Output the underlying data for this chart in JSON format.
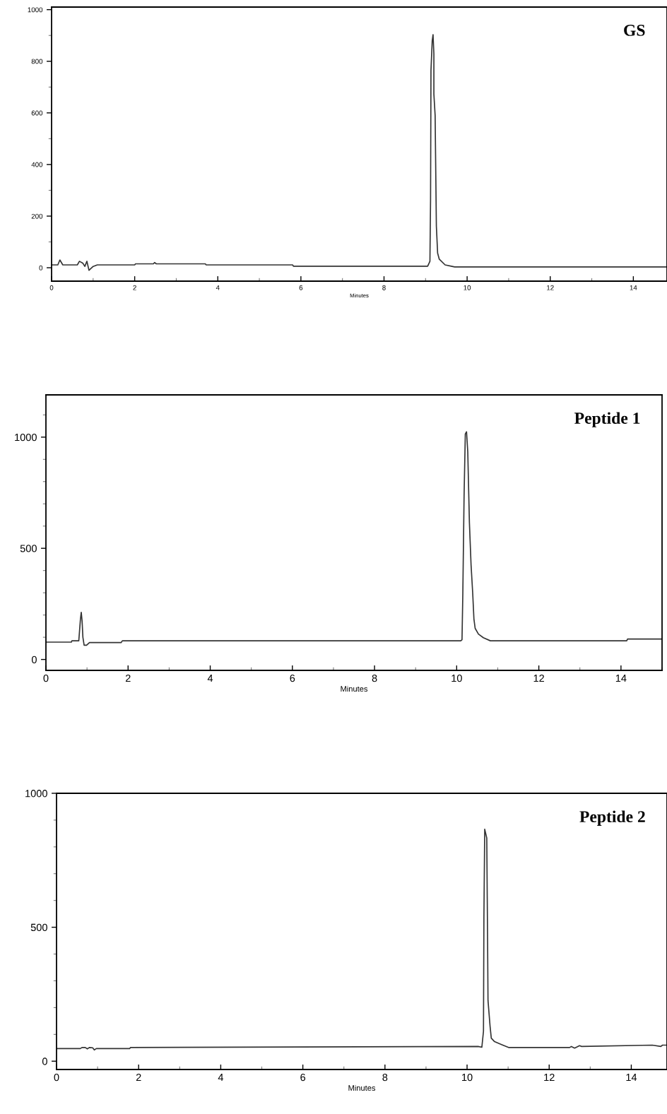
{
  "chart_data": [
    {
      "type": "line",
      "xlabel": "Minutes",
      "annotations": [
        "GS"
      ],
      "xlim": [
        0,
        14.81
      ],
      "ylim": [
        -52,
        1010
      ],
      "xticks": [
        0,
        {
          "value": 1,
          "label": null
        },
        2,
        {
          "value": 3,
          "label": null
        },
        4,
        {
          "value": 5,
          "label": null
        },
        6,
        {
          "value": 7,
          "label": null
        },
        8,
        {
          "value": 9,
          "label": null
        },
        10,
        {
          "value": 11,
          "label": null
        },
        12,
        {
          "value": 13,
          "label": null
        },
        14
      ],
      "yticks": [
        0,
        {
          "value": 100,
          "label": null
        },
        200,
        {
          "value": 300,
          "label": null
        },
        400,
        {
          "value": 500,
          "label": null
        },
        600,
        {
          "value": 700,
          "label": null
        },
        800,
        {
          "value": 900,
          "label": null
        },
        1000
      ],
      "series": [
        {
          "color": "#333333",
          "x": [
            0,
            0.15,
            0.2,
            0.27,
            0.62,
            0.67,
            0.75,
            0.8,
            0.85,
            0.9,
            1.0,
            1.1,
            2.0,
            2.02,
            2.45,
            2.48,
            2.52,
            3.7,
            3.72,
            5.8,
            5.82,
            9.05,
            9.105,
            9.12,
            9.13,
            9.16,
            9.18,
            9.2,
            9.2,
            9.23,
            9.26,
            9.29,
            9.33,
            9.47,
            9.64,
            9.7,
            14.81
          ],
          "values": [
            11,
            11,
            30,
            11,
            11,
            25,
            18,
            5,
            25,
            -10,
            5,
            11,
            11,
            15,
            15,
            20,
            15,
            15,
            11,
            11,
            6,
            6,
            25,
            263,
            764,
            880,
            903,
            828,
            673,
            591,
            161,
            57,
            33,
            11,
            5,
            3,
            3
          ]
        }
      ]
    },
    {
      "type": "line",
      "xlabel": "Minutes",
      "annotations": [
        "Peptide 1"
      ],
      "xlim": [
        0,
        15
      ],
      "ylim": [
        -49,
        1190
      ],
      "xticks": [
        0,
        {
          "value": 1,
          "label": null
        },
        2,
        {
          "value": 3,
          "label": null
        },
        4,
        {
          "value": 5,
          "label": null
        },
        6,
        {
          "value": 7,
          "label": null
        },
        8,
        {
          "value": 9,
          "label": null
        },
        10,
        {
          "value": 11,
          "label": null
        },
        12,
        {
          "value": 13,
          "label": null
        },
        14,
        {
          "value": 15,
          "label": null
        }
      ],
      "yticks": [
        0,
        {
          "value": 100,
          "label": null
        },
        {
          "value": 200,
          "label": null
        },
        {
          "value": 300,
          "label": null
        },
        {
          "value": 400,
          "label": null
        },
        500,
        {
          "value": 600,
          "label": null
        },
        {
          "value": 700,
          "label": null
        },
        {
          "value": 800,
          "label": null
        },
        {
          "value": 900,
          "label": null
        },
        1000,
        {
          "value": 1100,
          "label": null
        }
      ],
      "series": [
        {
          "color": "#333333",
          "x": [
            0,
            0.62,
            0.63,
            0.8,
            0.84,
            0.86,
            0.88,
            0.9,
            0.93,
            0.99,
            1.06,
            1.83,
            1.86,
            10.1,
            10.13,
            10.15,
            10.18,
            10.21,
            10.24,
            10.27,
            10.31,
            10.35,
            10.39,
            10.42,
            10.45,
            10.53,
            10.65,
            10.82,
            14.14,
            14.16,
            15
          ],
          "values": [
            78,
            78,
            84,
            84,
            181,
            212,
            174,
            100,
            64,
            64,
            76,
            76,
            84,
            84,
            89,
            299,
            733,
            1014,
            1024,
            934,
            616,
            426,
            299,
            182,
            140,
            114,
            98,
            84,
            84,
            92,
            92
          ]
        }
      ]
    },
    {
      "type": "line",
      "xlabel": "Minutes",
      "annotations": [
        "Peptide 2"
      ],
      "xlim": [
        0,
        14.87
      ],
      "ylim": [
        -31,
        1000
      ],
      "xticks": [
        0,
        {
          "value": 1,
          "label": null
        },
        2,
        {
          "value": 3,
          "label": null
        },
        4,
        {
          "value": 5,
          "label": null
        },
        6,
        {
          "value": 7,
          "label": null
        },
        8,
        {
          "value": 9,
          "label": null
        },
        10,
        {
          "value": 11,
          "label": null
        },
        12,
        {
          "value": 13,
          "label": null
        },
        14
      ],
      "yticks": [
        0,
        {
          "value": 100,
          "label": null
        },
        {
          "value": 200,
          "label": null
        },
        {
          "value": 300,
          "label": null
        },
        {
          "value": 400,
          "label": null
        },
        500,
        {
          "value": 600,
          "label": null
        },
        {
          "value": 700,
          "label": null
        },
        {
          "value": 800,
          "label": null
        },
        {
          "value": 900,
          "label": null
        },
        1000
      ],
      "series": [
        {
          "color": "#333333",
          "x": [
            0,
            0.58,
            0.62,
            0.7,
            0.75,
            0.8,
            0.88,
            0.92,
            0.97,
            1.78,
            1.8,
            10.27,
            10.36,
            10.4,
            10.41,
            10.43,
            10.48,
            10.5,
            10.51,
            10.56,
            10.59,
            10.67,
            10.84,
            11.02,
            12.5,
            12.54,
            12.62,
            12.74,
            12.79,
            14.51,
            14.72,
            14.76,
            14.87
          ],
          "values": [
            47,
            47,
            51,
            51,
            46,
            51,
            50,
            42,
            47,
            47,
            51,
            55,
            52,
            112,
            534,
            866,
            833,
            446,
            227,
            131,
            86,
            73,
            62,
            51,
            51,
            55,
            49,
            58,
            55,
            60,
            55,
            60,
            60
          ]
        }
      ]
    }
  ]
}
